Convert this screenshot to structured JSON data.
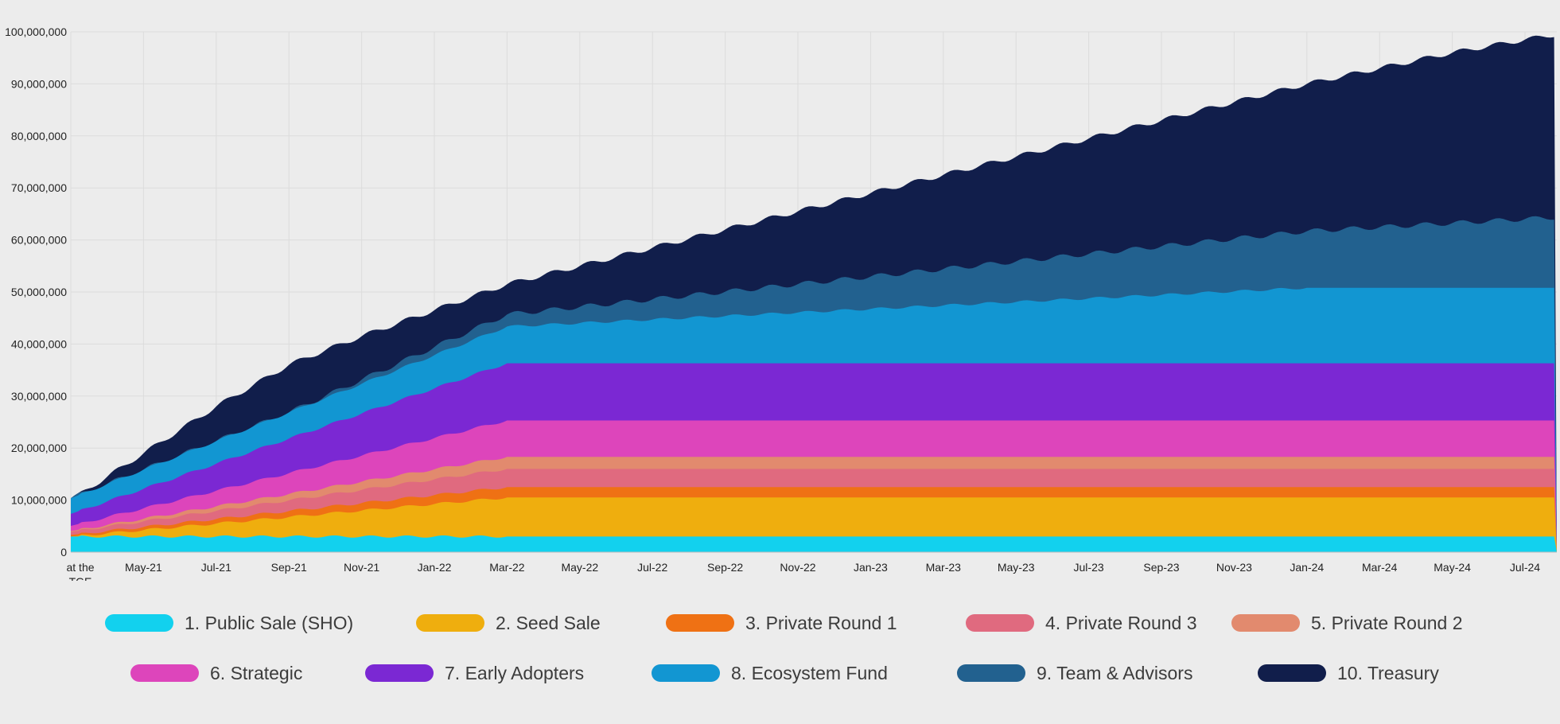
{
  "chart_data": {
    "type": "area",
    "stacked": true,
    "title": "",
    "xlabel": "",
    "ylabel": "",
    "ylim": [
      0,
      100000000
    ],
    "yticks": [
      0,
      10000000,
      20000000,
      30000000,
      40000000,
      50000000,
      60000000,
      70000000,
      80000000,
      90000000,
      100000000
    ],
    "ytick_labels": [
      "0",
      "10,000,000",
      "20,000,000",
      "30,000,000",
      "40,000,000",
      "50,000,000",
      "60,000,000",
      "70,000,000",
      "80,000,000",
      "90,000,000",
      "100,000,000"
    ],
    "xticks": [
      {
        "label_lines": [
          "at the",
          "TGE"
        ],
        "month": 0
      },
      {
        "label_lines": [
          "May-21"
        ],
        "month": 2
      },
      {
        "label_lines": [
          "Jul-21"
        ],
        "month": 4
      },
      {
        "label_lines": [
          "Sep-21"
        ],
        "month": 6
      },
      {
        "label_lines": [
          "Nov-21"
        ],
        "month": 8
      },
      {
        "label_lines": [
          "Jan-22"
        ],
        "month": 10
      },
      {
        "label_lines": [
          "Mar-22"
        ],
        "month": 12
      },
      {
        "label_lines": [
          "May-22"
        ],
        "month": 14
      },
      {
        "label_lines": [
          "Jul-22"
        ],
        "month": 16
      },
      {
        "label_lines": [
          "Sep-22"
        ],
        "month": 18
      },
      {
        "label_lines": [
          "Nov-22"
        ],
        "month": 20
      },
      {
        "label_lines": [
          "Jan-23"
        ],
        "month": 22
      },
      {
        "label_lines": [
          "Mar-23"
        ],
        "month": 24
      },
      {
        "label_lines": [
          "May-23"
        ],
        "month": 26
      },
      {
        "label_lines": [
          "Jul-23"
        ],
        "month": 28
      },
      {
        "label_lines": [
          "Sep-23"
        ],
        "month": 30
      },
      {
        "label_lines": [
          "Nov-23"
        ],
        "month": 32
      },
      {
        "label_lines": [
          "Jan-24"
        ],
        "month": 34
      },
      {
        "label_lines": [
          "Mar-24"
        ],
        "month": 36
      },
      {
        "label_lines": [
          "May-24"
        ],
        "month": 38
      },
      {
        "label_lines": [
          "Jul-24"
        ],
        "month": 40
      }
    ],
    "grid": true,
    "legend_position": "bottom",
    "series": [
      {
        "name": "1. Public Sale (SHO)",
        "color": "#12d1ee",
        "start": 3000000,
        "end": 3000000,
        "end_month": 0
      },
      {
        "name": "2. Seed Sale",
        "color": "#efae0e",
        "start": 0,
        "end": 7500000,
        "end_month": 12
      },
      {
        "name": "3. Private Round 1",
        "color": "#ef7114",
        "start": 300000,
        "end": 2000000,
        "end_month": 12
      },
      {
        "name": "4. Private Round 3",
        "color": "#e06a7f",
        "start": 600000,
        "end": 3500000,
        "end_month": 12
      },
      {
        "name": "5. Private Round 2",
        "color": "#e28a6e",
        "start": 150000,
        "end": 2300000,
        "end_month": 12
      },
      {
        "name": "6. Strategic",
        "color": "#dd45bb",
        "start": 1000000,
        "end": 7000000,
        "end_month": 12
      },
      {
        "name": "7. Early Adopters",
        "color": "#7b28d3",
        "start": 2300000,
        "end": 11000000,
        "end_month": 12
      },
      {
        "name": "8. Ecosystem Fund",
        "color": "#1296d2",
        "start": 3000000,
        "end": 14500000,
        "end_month": 34
      },
      {
        "name": "9. Team & Advisors",
        "color": "#22618f",
        "start": 0,
        "end": 14000000,
        "end_month": 42,
        "start_month": 6
      },
      {
        "name": "10. Treasury",
        "color": "#111e4b",
        "start": 0,
        "end": 35000000,
        "end_month": 42,
        "start_month": 7
      }
    ],
    "total_points": [
      [
        0,
        10000000
      ],
      [
        1,
        14500000
      ],
      [
        2,
        19000000
      ],
      [
        3,
        23500000
      ],
      [
        4,
        28000000
      ],
      [
        5,
        32000000
      ],
      [
        6,
        36000000
      ],
      [
        7,
        38800000
      ],
      [
        8,
        41500000
      ],
      [
        9,
        44000000
      ],
      [
        10,
        46500000
      ],
      [
        11,
        49000000
      ],
      [
        12,
        51500000
      ],
      [
        14,
        55000000
      ],
      [
        16,
        58500000
      ],
      [
        18,
        62000000
      ],
      [
        20,
        65500000
      ],
      [
        22,
        69000000
      ],
      [
        24,
        72500000
      ],
      [
        26,
        76000000
      ],
      [
        28,
        79500000
      ],
      [
        30,
        83000000
      ],
      [
        32,
        86500000
      ],
      [
        34,
        90000000
      ],
      [
        36,
        93000000
      ],
      [
        38,
        96000000
      ],
      [
        40,
        98500000
      ],
      [
        41.3,
        100000000
      ]
    ]
  },
  "legend": {
    "row1": [
      "1. Public Sale (SHO)",
      "2. Seed Sale",
      "3. Private Round 1",
      "4. Private Round 3",
      "5. Private Round 2"
    ],
    "row2": [
      "6. Strategic",
      "7. Early Adopters",
      "8. Ecosystem Fund",
      "9. Team & Advisors",
      "10. Treasury"
    ]
  }
}
